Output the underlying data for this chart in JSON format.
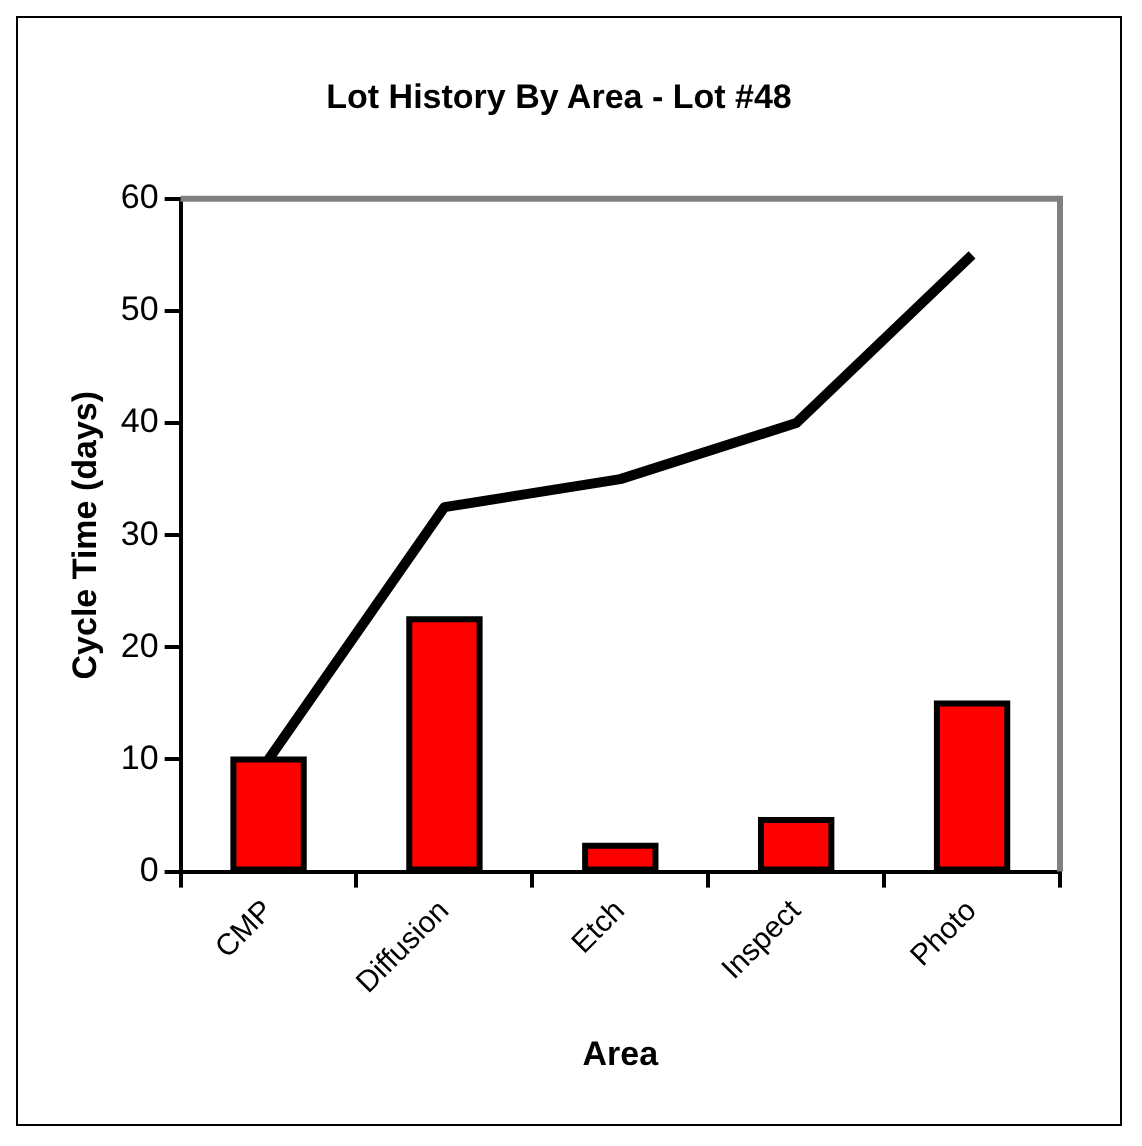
{
  "chart_data": {
    "type": "bar",
    "title": "Lot History By Area - Lot #48",
    "xlabel": "Area",
    "ylabel": "Cycle Time (days)",
    "categories": [
      "CMP",
      "Diffusion",
      "Etch",
      "Inspect",
      "Photo"
    ],
    "series": [
      {
        "color": "#ff0000",
        "values": [
          10,
          22.5,
          2.3,
          4.6,
          15
        ]
      },
      {
        "type": "line",
        "color": "#000000",
        "values": [
          10,
          32.5,
          35,
          40,
          55
        ]
      }
    ],
    "ylim": [
      0,
      60
    ],
    "yticks": [
      0,
      10,
      20,
      30,
      40,
      50,
      60
    ],
    "grid": false,
    "legend": false,
    "marker": "none",
    "line_style": "solid"
  }
}
